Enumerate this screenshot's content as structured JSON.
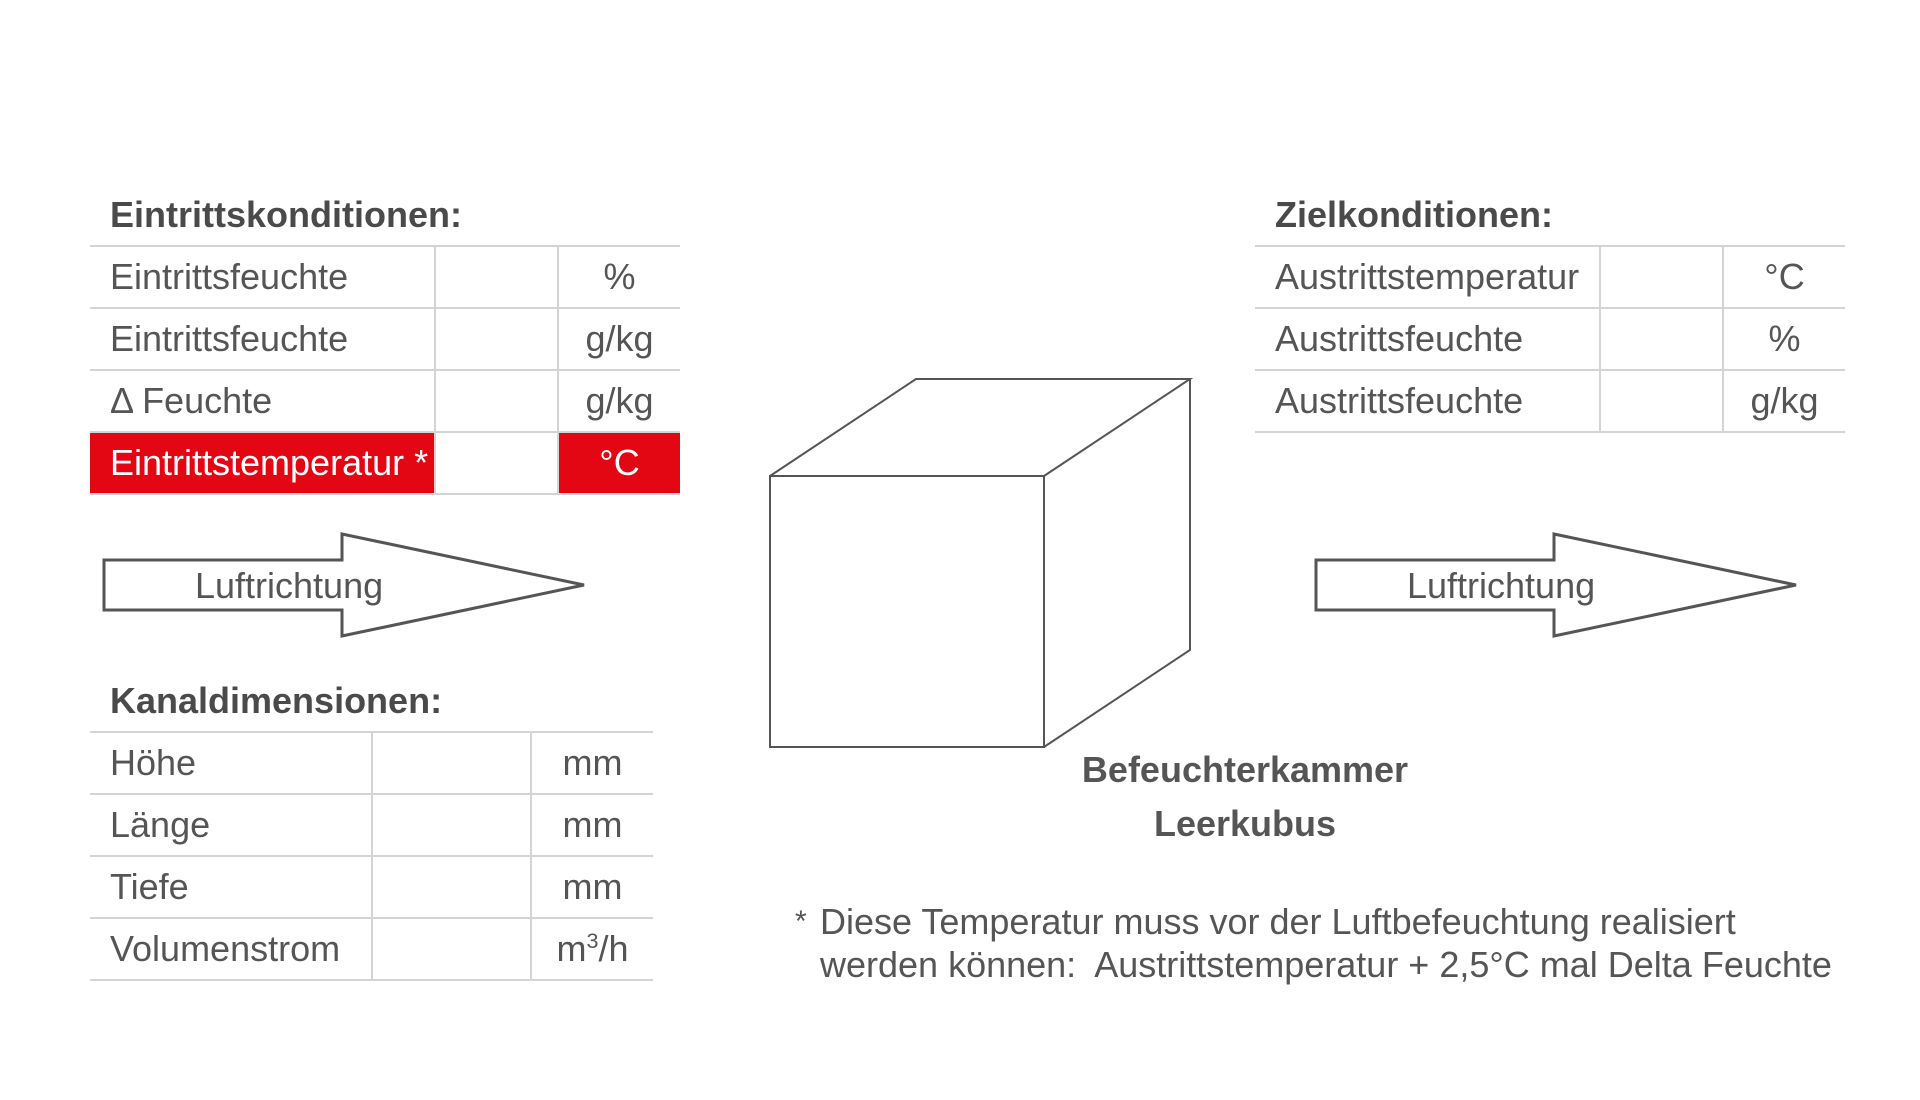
{
  "entry": {
    "heading": "Eintrittskonditionen:",
    "rows": [
      {
        "label": "Eintrittsfeuchte",
        "unit": "%"
      },
      {
        "label": "Eintrittsfeuchte",
        "unit": "g/kg"
      },
      {
        "label": "Δ Feuchte",
        "unit": "g/kg"
      },
      {
        "label": "Eintrittstemperatur *",
        "unit": "°C"
      }
    ]
  },
  "target": {
    "heading": "Zielkonditionen:",
    "rows": [
      {
        "label": "Austrittstemperatur",
        "unit": "°C"
      },
      {
        "label": "Austrittsfeuchte",
        "unit": "%"
      },
      {
        "label": "Austrittsfeuchte",
        "unit": "g/kg"
      }
    ]
  },
  "channel": {
    "heading": "Kanaldimensionen:",
    "rows": [
      {
        "label": "Höhe",
        "unit": "mm"
      },
      {
        "label": "Länge",
        "unit": "mm"
      },
      {
        "label": "Tiefe",
        "unit": "mm"
      },
      {
        "label": "Volumenstrom",
        "unit_base": "m",
        "unit_sup": "3",
        "unit_rest": "/h"
      }
    ]
  },
  "arrows": {
    "left_label": "Luftrichtung",
    "right_label": "Luftrichtung"
  },
  "cube": {
    "caption_line1": "Befeuchterkammer",
    "caption_line2": "Leerkubus"
  },
  "footnote": {
    "marker": "*",
    "line1": "Diese Temperatur muss vor der Luftbefeuchtung realisiert",
    "line2": "werden können:  Austrittstemperatur + 2,5°C mal Delta Feuchte"
  },
  "colors": {
    "highlight": "#e30613",
    "border": "#d4d4d4",
    "text": "#555555"
  }
}
